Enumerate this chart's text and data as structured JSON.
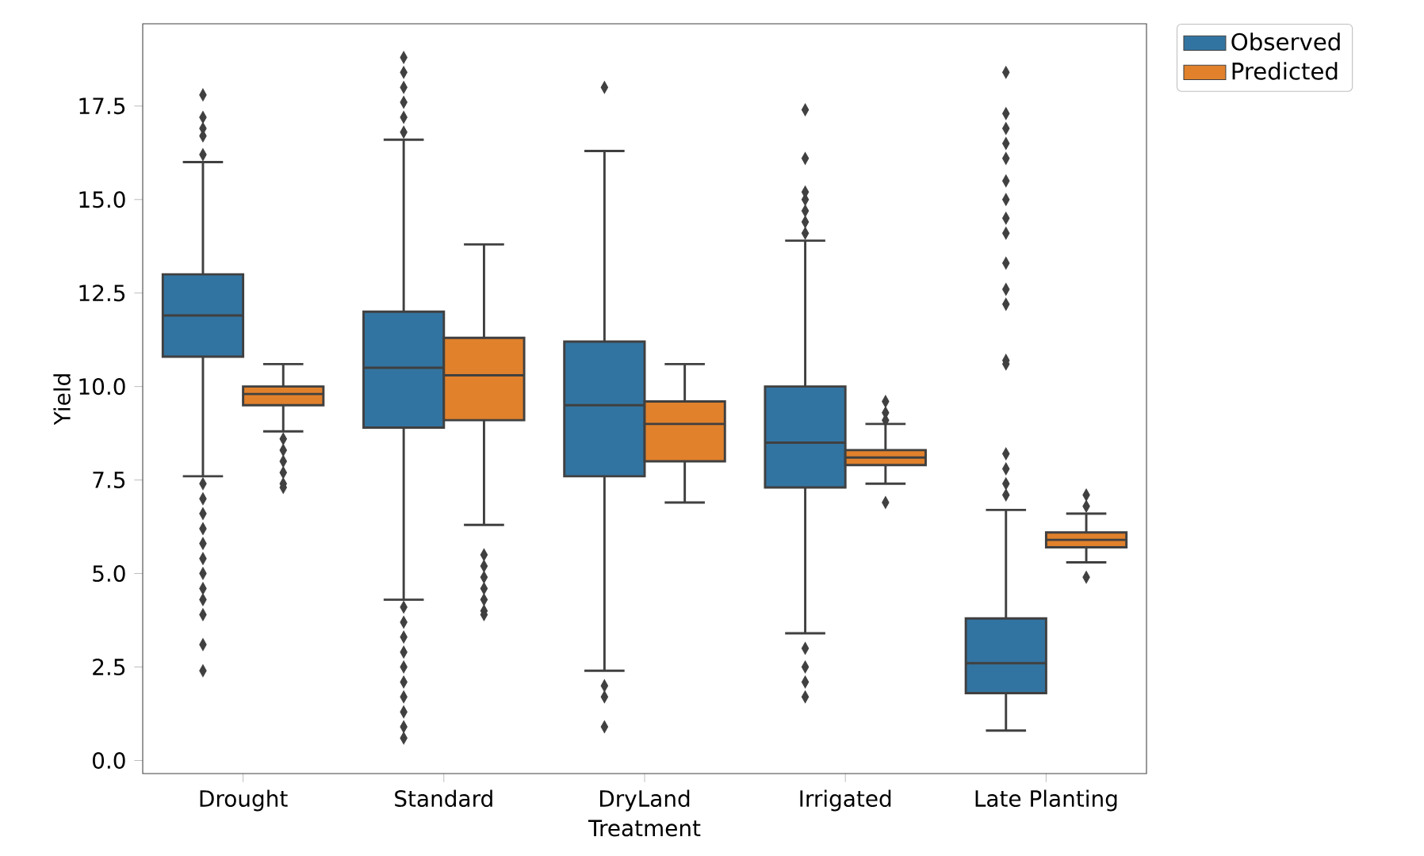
{
  "chart_data": {
    "type": "box",
    "xlabel": "Treatment",
    "ylabel": "Yield",
    "categories": [
      "Drought",
      "Standard",
      "DryLand",
      "Irrigated",
      "Late Planting"
    ],
    "ylim": [
      -0.35,
      19.7
    ],
    "yticks": [
      {
        "value": 0,
        "label": "0.0"
      },
      {
        "value": 2.5,
        "label": "2.5"
      },
      {
        "value": 5,
        "label": "5.0"
      },
      {
        "value": 7.5,
        "label": "7.5"
      },
      {
        "value": 10,
        "label": "10.0"
      },
      {
        "value": 12.5,
        "label": "12.5"
      },
      {
        "value": 15,
        "label": "15.0"
      },
      {
        "value": 17.5,
        "label": "17.5"
      }
    ],
    "legend": "top right",
    "marker": "diamond",
    "series": [
      {
        "name": "Observed",
        "color": "#3274a1",
        "boxes": [
          {
            "low": 7.6,
            "q1": 10.8,
            "median": 11.9,
            "q3": 13.0,
            "high": 16.0,
            "outliers": [
              17.8,
              17.2,
              16.9,
              16.7,
              16.2,
              7.4,
              7.0,
              6.6,
              6.2,
              5.8,
              5.4,
              5.0,
              4.6,
              4.3,
              3.9,
              3.1,
              2.4
            ]
          },
          {
            "low": 4.3,
            "q1": 8.9,
            "median": 10.5,
            "q3": 12.0,
            "high": 16.6,
            "outliers": [
              18.8,
              18.4,
              18.0,
              17.6,
              17.2,
              16.8,
              4.1,
              3.7,
              3.3,
              2.9,
              2.5,
              2.1,
              1.7,
              1.3,
              0.9,
              0.6
            ]
          },
          {
            "low": 2.4,
            "q1": 7.6,
            "median": 9.5,
            "q3": 11.2,
            "high": 16.3,
            "outliers": [
              18.0,
              2.0,
              1.7,
              0.9
            ]
          },
          {
            "low": 3.4,
            "q1": 7.3,
            "median": 8.5,
            "q3": 10.0,
            "high": 13.9,
            "outliers": [
              17.4,
              16.1,
              15.2,
              15.0,
              14.7,
              14.4,
              14.1,
              3.0,
              2.5,
              2.1,
              1.7
            ]
          },
          {
            "low": 0.8,
            "q1": 1.8,
            "median": 2.6,
            "q3": 3.8,
            "high": 6.7,
            "outliers": [
              18.4,
              17.3,
              16.9,
              16.5,
              16.1,
              15.5,
              15.0,
              14.5,
              14.1,
              13.3,
              12.6,
              12.2,
              10.7,
              10.6,
              8.2,
              7.8,
              7.4,
              7.1
            ]
          }
        ]
      },
      {
        "name": "Predicted",
        "color": "#e1812c",
        "boxes": [
          {
            "low": 8.8,
            "q1": 9.5,
            "median": 9.8,
            "q3": 10.0,
            "high": 10.6,
            "outliers": [
              8.6,
              8.3,
              8.0,
              7.7,
              7.4,
              7.3
            ]
          },
          {
            "low": 6.3,
            "q1": 9.1,
            "median": 10.3,
            "q3": 11.3,
            "high": 13.8,
            "outliers": [
              5.5,
              5.2,
              4.9,
              4.6,
              4.3,
              4.0,
              3.9
            ]
          },
          {
            "low": 6.9,
            "q1": 8.0,
            "median": 9.0,
            "q3": 9.6,
            "high": 10.6
          },
          {
            "low": 7.4,
            "q1": 7.9,
            "median": 8.1,
            "q3": 8.3,
            "high": 9.0,
            "outliers": [
              9.6,
              9.3,
              9.1,
              6.9
            ]
          },
          {
            "low": 5.3,
            "q1": 5.7,
            "median": 5.9,
            "q3": 6.1,
            "high": 6.6,
            "outliers": [
              7.1,
              6.8,
              4.9
            ]
          }
        ]
      }
    ]
  }
}
